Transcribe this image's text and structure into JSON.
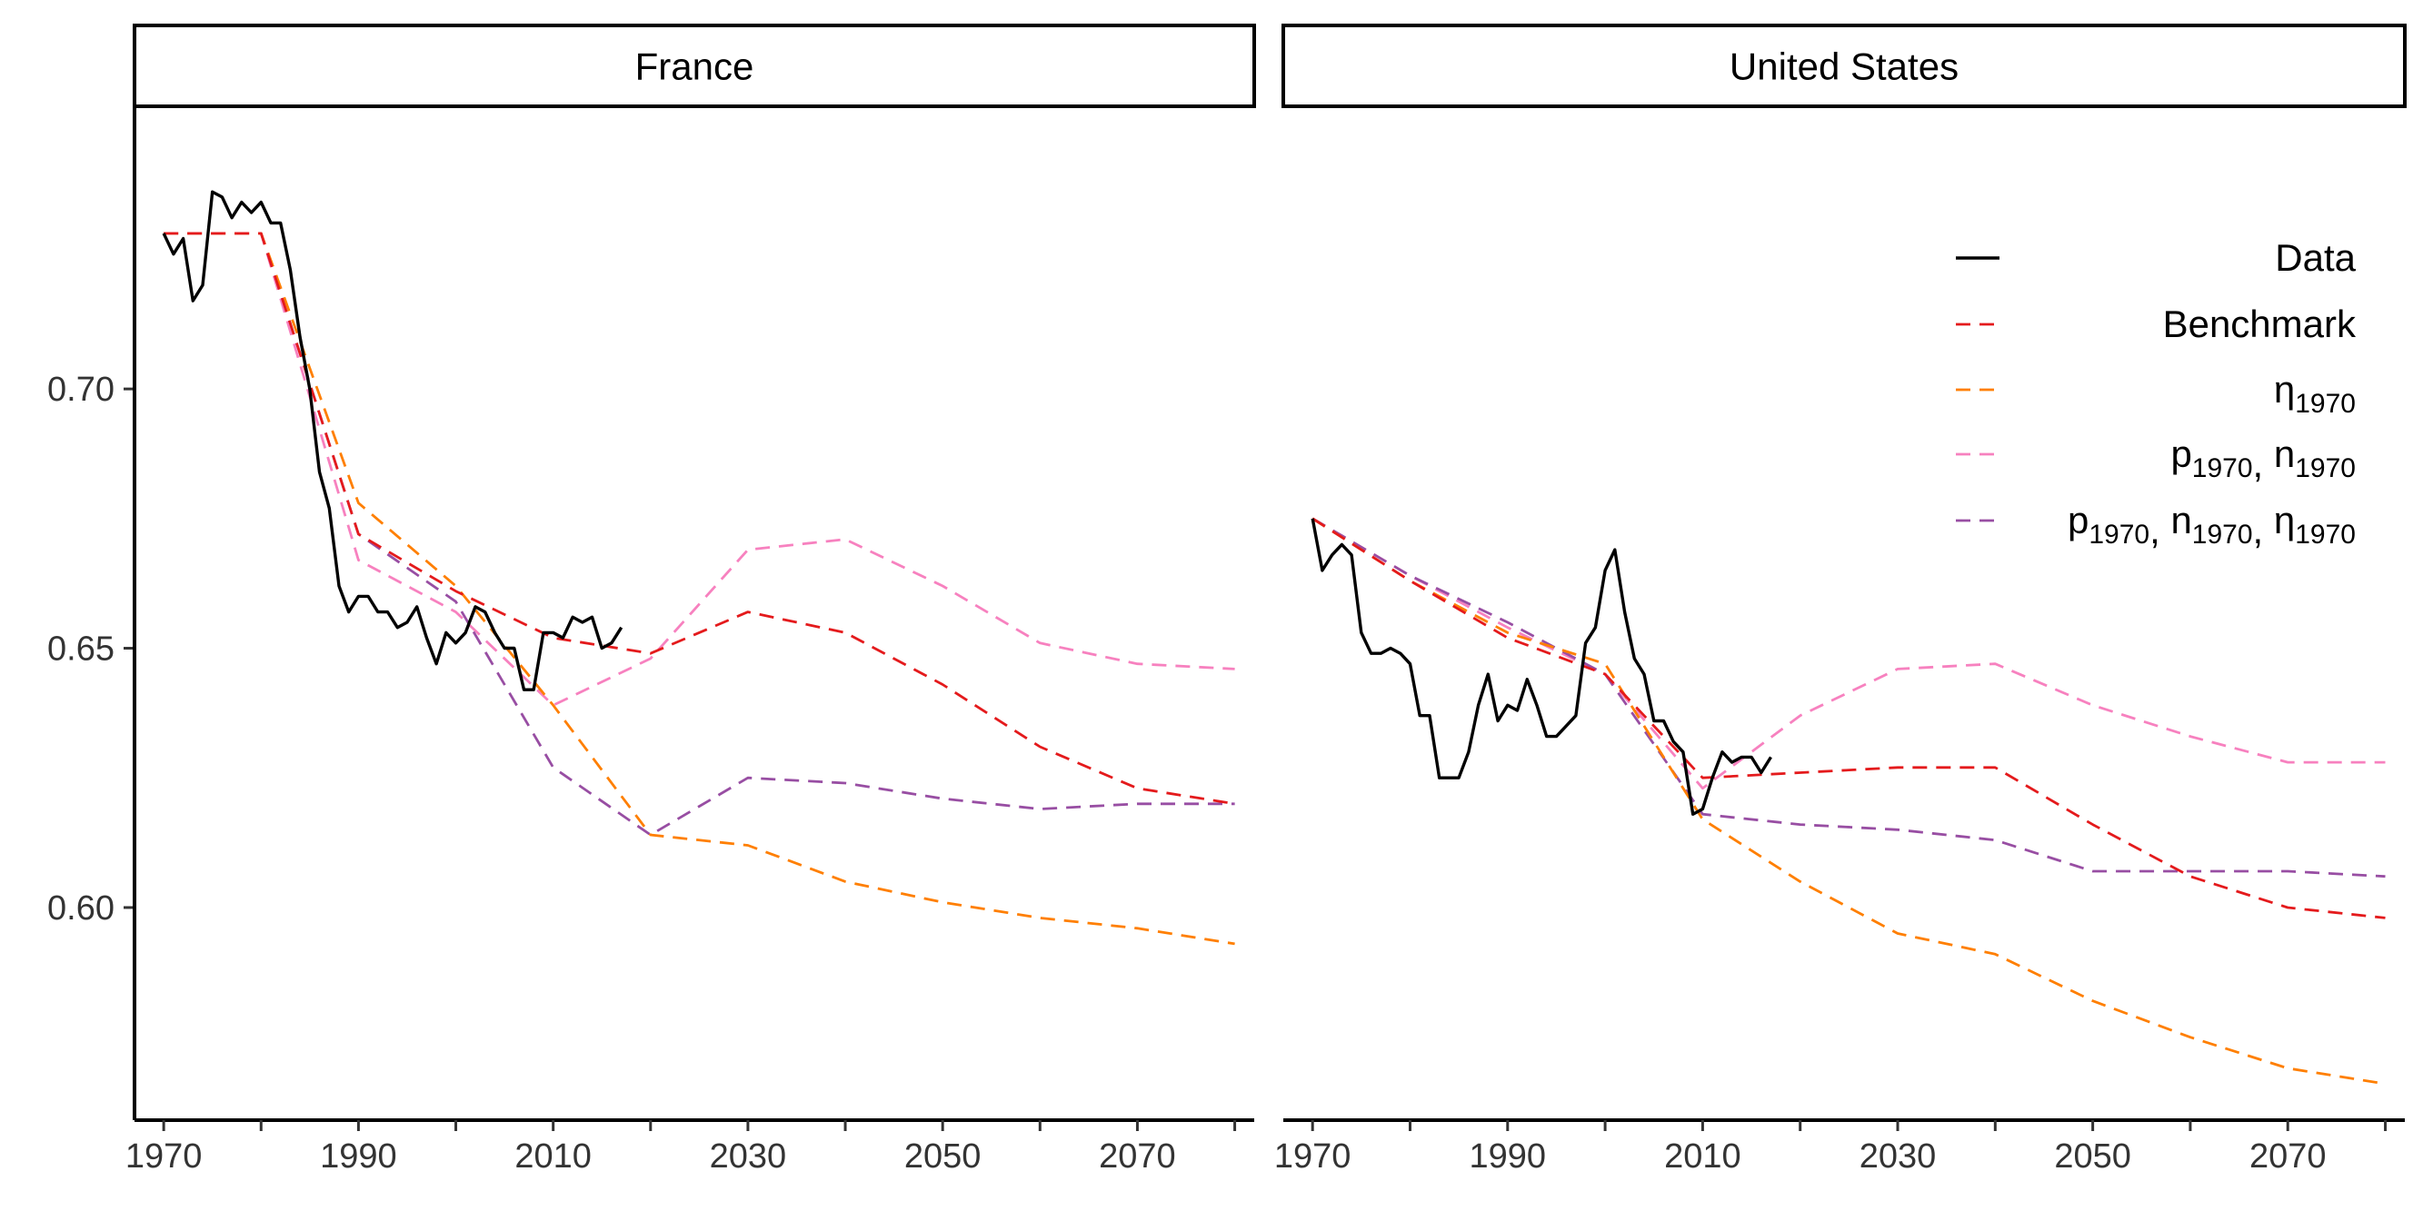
{
  "chart_data": {
    "type": "line",
    "title": "",
    "xlabel": "",
    "ylabel": "",
    "xlim": [
      1967,
      2082
    ],
    "ylim": [
      0.559,
      0.7545
    ],
    "x_ticks": [
      1970,
      1990,
      2010,
      2030,
      2050,
      2070
    ],
    "x_tick_labels": [
      "1970",
      "1990",
      "2010",
      "2030",
      "2050",
      "2070"
    ],
    "y_ticks": [
      0.6,
      0.65,
      0.7
    ],
    "y_tick_labels": [
      "0.60",
      "0.65",
      "0.70"
    ],
    "grid": false,
    "legend": {
      "placement": "top-right of United States panel",
      "entries": [
        {
          "series": "data",
          "label": "Data",
          "sub": []
        },
        {
          "series": "benchmark",
          "label": "Benchmark",
          "sub": []
        },
        {
          "series": "eta1970",
          "label": "",
          "sub": [
            [
              "η",
              "1970"
            ]
          ]
        },
        {
          "series": "pn1970",
          "label": "",
          "sub": [
            [
              "p",
              "1970"
            ],
            [
              "n",
              "1970"
            ]
          ]
        },
        {
          "series": "pneta1970",
          "label": "",
          "sub": [
            [
              "p",
              "1970"
            ],
            [
              "n",
              "1970"
            ],
            [
              "η",
              "1970"
            ]
          ]
        }
      ]
    },
    "series_styles": {
      "data": {
        "color": "#000000",
        "dashed": false
      },
      "benchmark": {
        "color": "#E41A1C",
        "dashed": true
      },
      "eta1970": {
        "color": "#FF7F00",
        "dashed": true
      },
      "pn1970": {
        "color": "#F781BF",
        "dashed": true
      },
      "pneta1970": {
        "color": "#984EA3",
        "dashed": true
      }
    },
    "panels": [
      {
        "name": "France",
        "series": {
          "pn1970": [
            [
              1970,
              0.73
            ],
            [
              1980,
              0.73
            ],
            [
              1990,
              0.667
            ],
            [
              2000,
              0.657
            ],
            [
              2010,
              0.639
            ],
            [
              2020,
              0.648
            ],
            [
              2030,
              0.669
            ],
            [
              2040,
              0.671
            ],
            [
              2050,
              0.662
            ],
            [
              2060,
              0.651
            ],
            [
              2070,
              0.647
            ],
            [
              2080,
              0.646
            ]
          ],
          "pneta1970": [
            [
              1970,
              0.73
            ],
            [
              1980,
              0.73
            ],
            [
              1990,
              0.672
            ],
            [
              2000,
              0.659
            ],
            [
              2010,
              0.627
            ],
            [
              2020,
              0.614
            ],
            [
              2030,
              0.625
            ],
            [
              2040,
              0.624
            ],
            [
              2050,
              0.621
            ],
            [
              2060,
              0.619
            ],
            [
              2070,
              0.62
            ],
            [
              2080,
              0.62
            ]
          ],
          "eta1970": [
            [
              1970,
              0.73
            ],
            [
              1980,
              0.73
            ],
            [
              1990,
              0.678
            ],
            [
              2000,
              0.662
            ],
            [
              2010,
              0.639
            ],
            [
              2020,
              0.614
            ],
            [
              2030,
              0.612
            ],
            [
              2040,
              0.605
            ],
            [
              2050,
              0.601
            ],
            [
              2060,
              0.598
            ],
            [
              2070,
              0.596
            ],
            [
              2080,
              0.593
            ]
          ],
          "benchmark": [
            [
              1970,
              0.73
            ],
            [
              1980,
              0.73
            ],
            [
              1990,
              0.672
            ],
            [
              2000,
              0.661
            ],
            [
              2010,
              0.652
            ],
            [
              2020,
              0.649
            ],
            [
              2030,
              0.657
            ],
            [
              2040,
              0.653
            ],
            [
              2050,
              0.643
            ],
            [
              2060,
              0.631
            ],
            [
              2070,
              0.623
            ],
            [
              2080,
              0.62
            ]
          ],
          "data": [
            [
              1970,
              0.73
            ],
            [
              1971,
              0.726
            ],
            [
              1972,
              0.729
            ],
            [
              1973,
              0.717
            ],
            [
              1974,
              0.72
            ],
            [
              1975,
              0.738
            ],
            [
              1976,
              0.737
            ],
            [
              1977,
              0.733
            ],
            [
              1978,
              0.736
            ],
            [
              1979,
              0.734
            ],
            [
              1980,
              0.736
            ],
            [
              1981,
              0.732
            ],
            [
              1982,
              0.732
            ],
            [
              1983,
              0.723
            ],
            [
              1984,
              0.71
            ],
            [
              1985,
              0.7
            ],
            [
              1986,
              0.684
            ],
            [
              1987,
              0.677
            ],
            [
              1988,
              0.662
            ],
            [
              1989,
              0.657
            ],
            [
              1990,
              0.66
            ],
            [
              1991,
              0.66
            ],
            [
              1992,
              0.657
            ],
            [
              1993,
              0.657
            ],
            [
              1994,
              0.654
            ],
            [
              1995,
              0.655
            ],
            [
              1996,
              0.658
            ],
            [
              1997,
              0.652
            ],
            [
              1998,
              0.647
            ],
            [
              1999,
              0.653
            ],
            [
              2000,
              0.651
            ],
            [
              2001,
              0.653
            ],
            [
              2002,
              0.658
            ],
            [
              2003,
              0.657
            ],
            [
              2004,
              0.653
            ],
            [
              2005,
              0.65
            ],
            [
              2006,
              0.65
            ],
            [
              2007,
              0.642
            ],
            [
              2008,
              0.642
            ],
            [
              2009,
              0.653
            ],
            [
              2010,
              0.653
            ],
            [
              2011,
              0.652
            ],
            [
              2012,
              0.656
            ],
            [
              2013,
              0.655
            ],
            [
              2014,
              0.656
            ],
            [
              2015,
              0.65
            ],
            [
              2016,
              0.651
            ],
            [
              2017,
              0.654
            ]
          ]
        }
      },
      {
        "name": "United States",
        "series": {
          "pn1970": [
            [
              1970,
              0.675
            ],
            [
              1980,
              0.664
            ],
            [
              1990,
              0.654
            ],
            [
              2000,
              0.645
            ],
            [
              2010,
              0.623
            ],
            [
              2020,
              0.637
            ],
            [
              2030,
              0.646
            ],
            [
              2040,
              0.647
            ],
            [
              2050,
              0.639
            ],
            [
              2060,
              0.633
            ],
            [
              2070,
              0.628
            ],
            [
              2080,
              0.628
            ]
          ],
          "pneta1970": [
            [
              1970,
              0.675
            ],
            [
              1980,
              0.664
            ],
            [
              1990,
              0.655
            ],
            [
              2000,
              0.645
            ],
            [
              2010,
              0.618
            ],
            [
              2020,
              0.616
            ],
            [
              2030,
              0.615
            ],
            [
              2040,
              0.613
            ],
            [
              2050,
              0.607
            ],
            [
              2060,
              0.607
            ],
            [
              2070,
              0.607
            ],
            [
              2080,
              0.606
            ]
          ],
          "eta1970": [
            [
              1970,
              0.675
            ],
            [
              1980,
              0.663
            ],
            [
              1990,
              0.653
            ],
            [
              2000,
              0.647
            ],
            [
              2010,
              0.617
            ],
            [
              2020,
              0.605
            ],
            [
              2030,
              0.595
            ],
            [
              2040,
              0.591
            ],
            [
              2050,
              0.582
            ],
            [
              2060,
              0.575
            ],
            [
              2070,
              0.569
            ],
            [
              2080,
              0.566
            ]
          ],
          "benchmark": [
            [
              1970,
              0.675
            ],
            [
              1980,
              0.663
            ],
            [
              1990,
              0.652
            ],
            [
              2000,
              0.645
            ],
            [
              2010,
              0.625
            ],
            [
              2020,
              0.626
            ],
            [
              2030,
              0.627
            ],
            [
              2040,
              0.627
            ],
            [
              2050,
              0.616
            ],
            [
              2060,
              0.606
            ],
            [
              2070,
              0.6
            ],
            [
              2080,
              0.598
            ]
          ],
          "data": [
            [
              1970,
              0.675
            ],
            [
              1971,
              0.665
            ],
            [
              1972,
              0.668
            ],
            [
              1973,
              0.67
            ],
            [
              1974,
              0.668
            ],
            [
              1975,
              0.653
            ],
            [
              1976,
              0.649
            ],
            [
              1977,
              0.649
            ],
            [
              1978,
              0.65
            ],
            [
              1979,
              0.649
            ],
            [
              1980,
              0.647
            ],
            [
              1981,
              0.637
            ],
            [
              1982,
              0.637
            ],
            [
              1983,
              0.625
            ],
            [
              1984,
              0.625
            ],
            [
              1985,
              0.625
            ],
            [
              1986,
              0.63
            ],
            [
              1987,
              0.639
            ],
            [
              1988,
              0.645
            ],
            [
              1989,
              0.636
            ],
            [
              1990,
              0.639
            ],
            [
              1991,
              0.638
            ],
            [
              1992,
              0.644
            ],
            [
              1993,
              0.639
            ],
            [
              1994,
              0.633
            ],
            [
              1995,
              0.633
            ],
            [
              1996,
              0.635
            ],
            [
              1997,
              0.637
            ],
            [
              1998,
              0.651
            ],
            [
              1999,
              0.654
            ],
            [
              2000,
              0.665
            ],
            [
              2001,
              0.669
            ],
            [
              2002,
              0.657
            ],
            [
              2003,
              0.648
            ],
            [
              2004,
              0.645
            ],
            [
              2005,
              0.636
            ],
            [
              2006,
              0.636
            ],
            [
              2007,
              0.632
            ],
            [
              2008,
              0.63
            ],
            [
              2009,
              0.618
            ],
            [
              2010,
              0.619
            ],
            [
              2011,
              0.625
            ],
            [
              2012,
              0.63
            ],
            [
              2013,
              0.628
            ],
            [
              2014,
              0.629
            ],
            [
              2015,
              0.629
            ],
            [
              2016,
              0.626
            ],
            [
              2017,
              0.629
            ]
          ]
        }
      }
    ]
  }
}
